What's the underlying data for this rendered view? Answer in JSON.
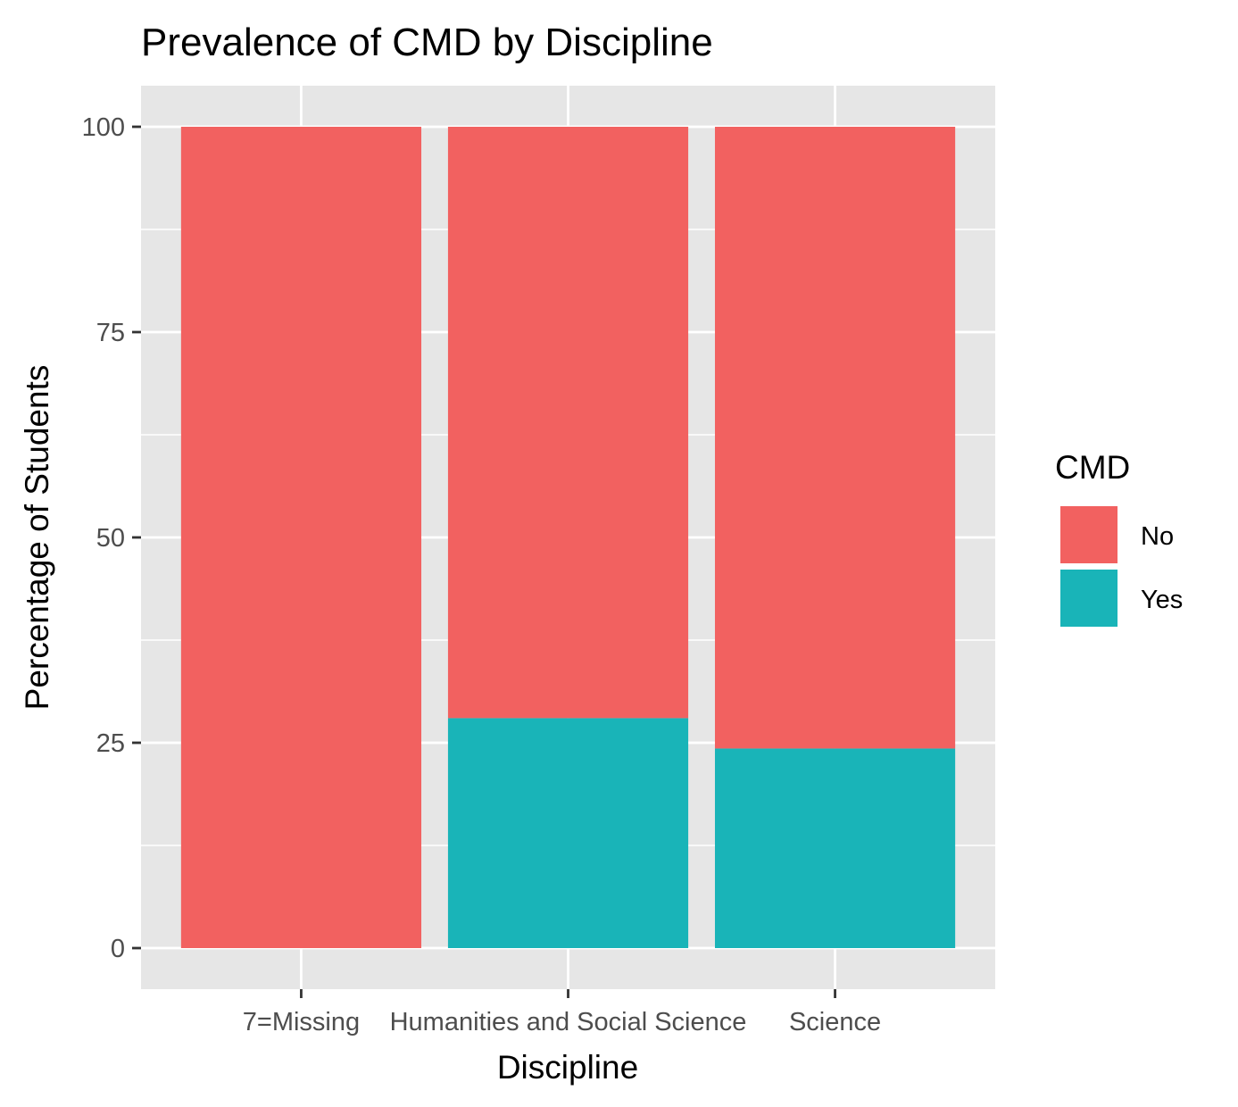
{
  "chart_data": {
    "type": "bar",
    "stacked": true,
    "title": "Prevalence of CMD by Discipline",
    "xlabel": "Discipline",
    "ylabel": "Percentage of Students",
    "categories": [
      "7=Missing",
      "Humanities and Social Science",
      "Science"
    ],
    "series": [
      {
        "name": "No",
        "values": [
          100,
          72,
          75.7
        ]
      },
      {
        "name": "Yes",
        "values": [
          0,
          28,
          24.3
        ]
      }
    ],
    "ylim": [
      -5,
      105
    ],
    "yticks": [
      0,
      25,
      50,
      75,
      100
    ],
    "grid": true,
    "legend": {
      "title": "CMD",
      "position": "right",
      "items": [
        {
          "label": "No",
          "color": "#F26160"
        },
        {
          "label": "Yes",
          "color": "#19B4B8"
        }
      ]
    },
    "colors": {
      "No": "#F26160",
      "Yes": "#19B4B8",
      "panel": "#E6E6E6",
      "grid": "#FFFFFF"
    }
  }
}
